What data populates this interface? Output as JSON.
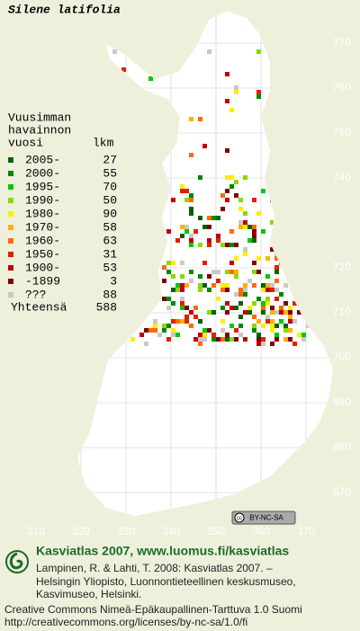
{
  "title": "Silene latifolia",
  "grid": {
    "x_labels": [
      310,
      320,
      330,
      340,
      350,
      360,
      370
    ],
    "y_labels": [
      770,
      760,
      750,
      740,
      720,
      710,
      700,
      690,
      680,
      670
    ]
  },
  "legend": {
    "heading": [
      "Vuusimman",
      "havainnon",
      "vuosi"
    ],
    "count_heading": "lkm",
    "items": [
      {
        "label": "2005-",
        "count": 27,
        "color": "#006400"
      },
      {
        "label": "2000-",
        "count": 55,
        "color": "#008a00"
      },
      {
        "label": "1995-",
        "count": 70,
        "color": "#00c800"
      },
      {
        "label": "1990-",
        "count": 50,
        "color": "#8cd800"
      },
      {
        "label": "1980-",
        "count": 90,
        "color": "#ffee00"
      },
      {
        "label": "1970-",
        "count": 58,
        "color": "#ffb000"
      },
      {
        "label": "1960-",
        "count": 63,
        "color": "#ff6a00"
      },
      {
        "label": "1950-",
        "count": 31,
        "color": "#e02000"
      },
      {
        "label": "1900-",
        "count": 53,
        "color": "#c00000"
      },
      {
        "label": "-1899",
        "count": 3,
        "color": "#800000"
      },
      {
        "label": "???",
        "count": 88,
        "color": "#c8c8c8"
      }
    ],
    "total_label": "Yhteensä",
    "total": 588
  },
  "badge": "BY-NC-SA",
  "footer": {
    "brand": "Kasviatlas 2007, www.luomus.fi/kasviatlas",
    "citation": [
      "Lampinen, R. & Lahti, T. 2008: Kasviatlas 2007. –",
      "Helsingin Yliopisto, Luonnontieteellinen keskusmuseo,",
      "Kasvimuseo, Helsinki."
    ],
    "license": [
      "Creative Commons Nimeä-Epäkaupallinen-Tarttuva 1.0 Suomi",
      "http://creativecommons.org/licenses/by-nc-sa/1.0/fi"
    ]
  }
}
